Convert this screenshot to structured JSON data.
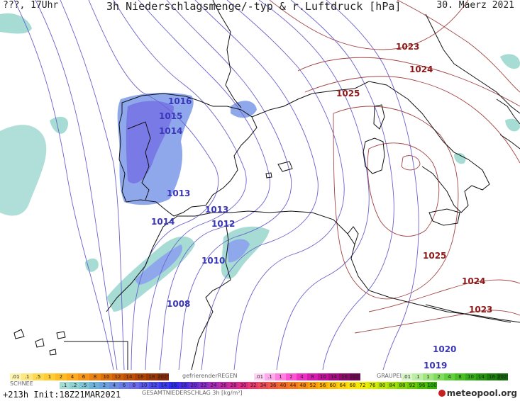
{
  "header": {
    "left": "???, 17Uhr",
    "title": "3h Niederschlagsmenge/-typ & r.Luftdruck [hPa]",
    "date": "30. Maerz 2021"
  },
  "isobar_labels": {
    "l1023": "1023",
    "l1024a": "1024",
    "l1025a": "1025",
    "l1016": "1016",
    "l1015": "1015",
    "l1014a": "1014",
    "l1013a": "1013",
    "l1013b": "1013",
    "l1014b": "1014",
    "l1012": "1012",
    "l1010": "1010",
    "l1008": "1008",
    "l1025b": "1025",
    "l1024b": "1024",
    "l1023b": "1023",
    "l1020": "1020",
    "l1019": "1019"
  },
  "legend": {
    "snow_label": "SCHNEE",
    "snow_values": [
      ".01",
      ".1",
      ".5",
      "1",
      "2",
      "4",
      "6",
      "8",
      "10",
      "12",
      "14",
      "16",
      "18",
      "2025+"
    ],
    "freezing_label": "gefrierenderREGEN",
    "freezing_values": [
      ".01",
      ".1",
      "1",
      "2",
      "4",
      "8",
      "10",
      "14",
      "16",
      "2025+"
    ],
    "graupel_label": "GRAUPEL",
    "graupel_values": [
      ".01",
      ".1",
      "1",
      "2",
      "4",
      "8",
      "10",
      "14",
      "16",
      "2025+"
    ],
    "total_label": "GESAMTNIEDERSCHLAG 3h [kg/m²]",
    "total_values": [
      ".1",
      ".2",
      ".5",
      "1",
      "2",
      "4",
      "6",
      "8",
      "10",
      "12",
      "14",
      "16",
      "18",
      "20",
      "22",
      "24",
      "26",
      "28",
      "30",
      "32",
      "34",
      "36",
      "40",
      "44",
      "48",
      "52",
      "56",
      "60",
      "64",
      "68",
      "72",
      "76",
      "80",
      "84",
      "88",
      "92",
      "96",
      "100"
    ],
    "snow_colors": [
      "#fff3b0",
      "#ffe680",
      "#ffd84d",
      "#ffcc33",
      "#ffbb22",
      "#ffa81a",
      "#f59415",
      "#ea8010",
      "#dd6f0d",
      "#cf5e0a",
      "#bf4f08",
      "#b04206",
      "#9e3606",
      "#8a2c05"
    ],
    "freezing_colors": [
      "#ffd6f5",
      "#ffaaeb",
      "#ff80e0",
      "#ff55d4",
      "#f030c5",
      "#d81cb0",
      "#c21098",
      "#a80c82",
      "#8e086c",
      "#740556"
    ],
    "graupel_colors": [
      "#d8f5c8",
      "#bcefa4",
      "#9fe680",
      "#80dc5c",
      "#62d03c",
      "#48c024",
      "#34ac18",
      "#26960f",
      "#1a7f0a",
      "#106806"
    ],
    "total_colors": [
      "#a6dcd4",
      "#8fd2d2",
      "#7cc4d4",
      "#6cb2d8",
      "#6aa0dc",
      "#6a8ee0",
      "#6a7ce6",
      "#6a6aea",
      "#5a5aee",
      "#4a4af0",
      "#3a3af2",
      "#2a2af4",
      "#4a2ae8",
      "#6a2ad8",
      "#8a2ac8",
      "#a82ab8",
      "#c02aa8",
      "#d42a98",
      "#e22a88",
      "#ea3a70",
      "#f04a58",
      "#f45a40",
      "#f66a28",
      "#f87a18",
      "#fa8c10",
      "#fc9e08",
      "#fdb000",
      "#fec200",
      "#ffd400",
      "#ffe400",
      "#f4ec00",
      "#d8ec00",
      "#bce800",
      "#a0e000",
      "#84d800",
      "#68cc00",
      "#4cc000",
      "#30b400"
    ]
  },
  "footer": {
    "run": "+213h Init:18Z21MAR2021",
    "brand": "meteopool.org"
  },
  "colors": {
    "precip_light": "#a6dcd4",
    "precip_mid": "#8fa8ec",
    "precip_dark": "#7a7ae6",
    "isobar_low": "#6a62cc",
    "isobar_high": "#a24444",
    "coast": "#111111"
  }
}
